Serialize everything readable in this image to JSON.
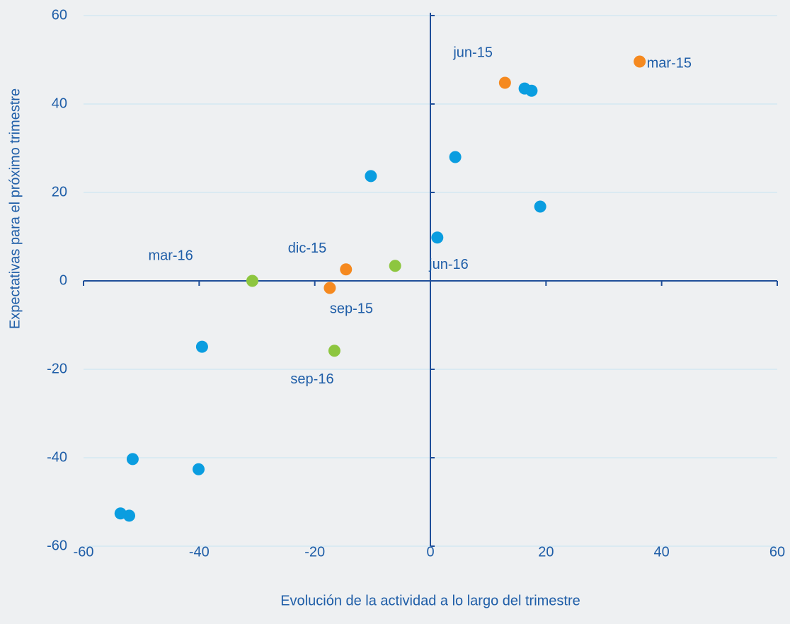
{
  "chart_data": {
    "type": "scatter",
    "x_label": "Evolución de la actividad a lo largo del trimestre",
    "y_label": "Expectativas para el próximo trimestre",
    "xlim": [
      -60,
      60
    ],
    "xticks": [
      -60,
      -40,
      -20,
      0,
      20,
      40,
      60
    ],
    "ylim": [
      -60,
      60
    ],
    "yticks": [
      -60,
      -40,
      -20,
      0,
      20,
      40,
      60
    ],
    "grid": true,
    "series": [
      {
        "color": "#0a9de0",
        "x": [
          16.3,
          17.5,
          4.3,
          -10.3,
          19.0,
          1.2,
          -39.5,
          -51.5,
          -40.1,
          -53.6,
          -52.1
        ],
        "values": [
          43.5,
          43.0,
          28.0,
          23.7,
          16.8,
          9.8,
          -14.9,
          -40.3,
          -42.6,
          -52.6,
          -53.1
        ]
      },
      {
        "color": "#f5891f",
        "x": [
          36.2,
          12.9,
          -17.4,
          -14.6
        ],
        "values": [
          49.6,
          44.8,
          -1.6,
          2.6
        ],
        "point_labels": [
          "mar-15",
          "jun-15",
          "sep-15",
          "dic-15"
        ]
      },
      {
        "color": "#8dc63f",
        "x": [
          -30.8,
          -6.1,
          -16.6
        ],
        "values": [
          0,
          3.4,
          -15.8
        ],
        "point_labels": [
          "mar-16",
          "jun-16",
          "sep-16"
        ]
      }
    ]
  }
}
